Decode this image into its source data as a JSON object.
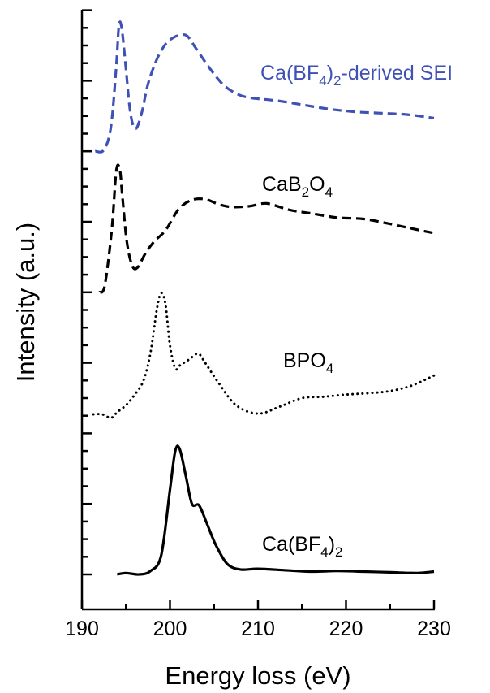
{
  "chart_data": {
    "type": "line",
    "xlabel": "Energy loss (eV)",
    "ylabel": "Intensity (a.u.)",
    "xlim": [
      190,
      230
    ],
    "x_ticks": [
      "190",
      "200",
      "210",
      "220",
      "230"
    ],
    "y_tick_labels": "none",
    "grid": false,
    "legend": "none",
    "series": [
      {
        "name": "Ca(BF₄)₂-derived SEI",
        "color": "#3f51b5",
        "style": "dashed",
        "offset": 3,
        "x": [
          191.5,
          192.5,
          193.3,
          193.9,
          194.2,
          194.5,
          194.9,
          195.5,
          196.1,
          196.8,
          197.5,
          198.5,
          199.5,
          200.5,
          201.3,
          202.0,
          203.0,
          204.5,
          206.0,
          207.5,
          209.0,
          212.0,
          215.0,
          218.0,
          221.0,
          224.0,
          227.0,
          230.0
        ],
        "y": [
          0.0,
          0.02,
          0.35,
          1.2,
          1.78,
          1.76,
          1.3,
          0.55,
          0.32,
          0.55,
          0.95,
          1.3,
          1.52,
          1.62,
          1.65,
          1.63,
          1.45,
          1.18,
          0.95,
          0.82,
          0.76,
          0.72,
          0.66,
          0.6,
          0.56,
          0.54,
          0.52,
          0.47
        ]
      },
      {
        "name": "CaB₂O₄",
        "color": "#000000",
        "style": "dashed",
        "offset": 2,
        "x": [
          192.0,
          192.6,
          193.4,
          193.9,
          194.3,
          194.6,
          195.1,
          195.7,
          196.3,
          197.2,
          198.2,
          199.5,
          201.0,
          202.5,
          204.0,
          205.5,
          207.0,
          209.0,
          211.0,
          213.5,
          216.0,
          219.0,
          222.0,
          225.0,
          228.0,
          230.0
        ],
        "y": [
          0.0,
          0.1,
          0.9,
          1.72,
          1.74,
          1.35,
          0.72,
          0.38,
          0.35,
          0.55,
          0.72,
          0.88,
          1.18,
          1.31,
          1.32,
          1.25,
          1.21,
          1.22,
          1.26,
          1.17,
          1.12,
          1.06,
          1.04,
          0.97,
          0.89,
          0.84
        ]
      },
      {
        "name": "BPO₄",
        "color": "#000000",
        "style": "dotted",
        "offset": 1,
        "x": [
          191.3,
          192.3,
          193.3,
          194.0,
          195.0,
          196.0,
          197.0,
          197.8,
          198.5,
          199.0,
          199.5,
          200.0,
          200.6,
          201.2,
          202.2,
          203.2,
          204.0,
          205.5,
          207.5,
          210.0,
          212.5,
          215.0,
          217.5,
          220.0,
          222.5,
          225.0,
          227.5,
          230.0
        ],
        "y": [
          0.27,
          0.27,
          0.22,
          0.3,
          0.4,
          0.55,
          0.75,
          1.15,
          1.75,
          1.99,
          1.82,
          1.25,
          0.92,
          0.97,
          1.05,
          1.13,
          1.0,
          0.72,
          0.4,
          0.28,
          0.38,
          0.5,
          0.52,
          0.55,
          0.57,
          0.6,
          0.68,
          0.82
        ]
      },
      {
        "name": "Ca(BF₄)₂",
        "color": "#000000",
        "style": "solid",
        "offset": 0,
        "x": [
          194.0,
          195.0,
          196.5,
          197.8,
          199.0,
          200.0,
          200.6,
          201.1,
          201.8,
          202.5,
          203.3,
          204.2,
          205.2,
          206.5,
          208.0,
          210.0,
          213.0,
          216.0,
          219.0,
          222.0,
          225.0,
          228.0,
          230.0
        ],
        "y": [
          0.0,
          0.02,
          0.0,
          0.05,
          0.27,
          1.2,
          1.75,
          1.78,
          1.4,
          1.0,
          0.98,
          0.72,
          0.42,
          0.15,
          0.07,
          0.08,
          0.06,
          0.04,
          0.05,
          0.04,
          0.03,
          0.02,
          0.04
        ]
      }
    ]
  }
}
